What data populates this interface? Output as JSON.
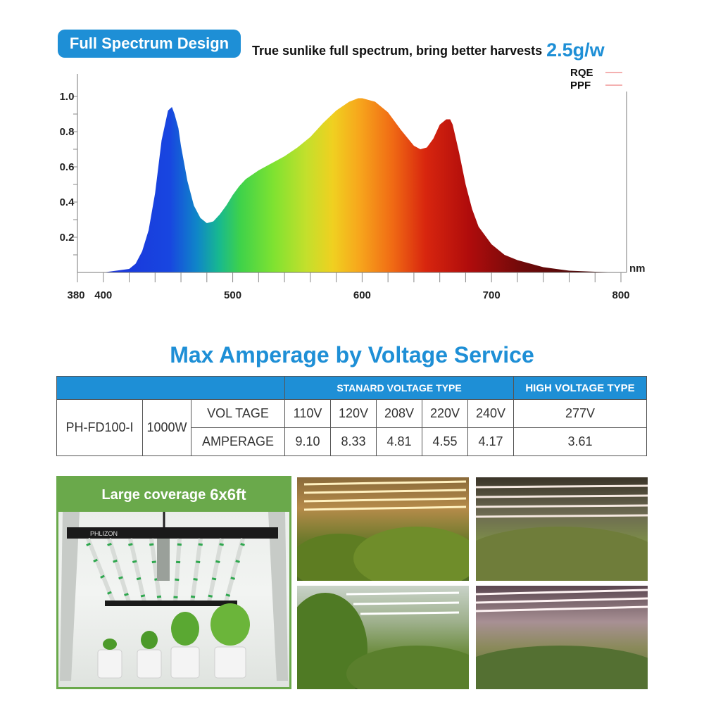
{
  "header": {
    "badge": "Full Spectrum Design",
    "tagline": "True sunlike full spectrum, bring better harvests",
    "highlight": "2.5g/w"
  },
  "chart_data": {
    "type": "area",
    "xlabel": "nm",
    "ylabel": "",
    "x_ticks": [
      "380",
      "400",
      "500",
      "600",
      "700",
      "800"
    ],
    "y_ticks": [
      "0.2",
      "0.4",
      "0.6",
      "0.8",
      "1.0"
    ],
    "xlim": [
      380,
      800
    ],
    "ylim": [
      0,
      1.08
    ],
    "legend": [
      {
        "name": "RQE",
        "color": "#e86060"
      },
      {
        "name": "PPF",
        "color": "#e86060"
      }
    ],
    "legend_position": "top-right",
    "x": [
      380,
      400,
      410,
      420,
      425,
      430,
      435,
      440,
      445,
      450,
      453,
      455,
      458,
      460,
      465,
      470,
      475,
      480,
      485,
      490,
      495,
      500,
      505,
      510,
      520,
      530,
      540,
      550,
      560,
      570,
      580,
      590,
      597,
      600,
      610,
      620,
      630,
      640,
      645,
      650,
      655,
      660,
      665,
      668,
      670,
      675,
      680,
      685,
      690,
      700,
      710,
      720,
      730,
      740,
      750,
      760,
      780,
      800
    ],
    "y": [
      0.0,
      0.0,
      0.01,
      0.02,
      0.05,
      0.12,
      0.24,
      0.45,
      0.75,
      0.92,
      0.94,
      0.9,
      0.82,
      0.72,
      0.52,
      0.38,
      0.31,
      0.28,
      0.29,
      0.33,
      0.38,
      0.44,
      0.49,
      0.53,
      0.58,
      0.62,
      0.66,
      0.71,
      0.77,
      0.85,
      0.92,
      0.97,
      0.99,
      0.99,
      0.97,
      0.91,
      0.81,
      0.72,
      0.7,
      0.71,
      0.76,
      0.84,
      0.87,
      0.87,
      0.84,
      0.68,
      0.5,
      0.36,
      0.26,
      0.16,
      0.1,
      0.07,
      0.05,
      0.03,
      0.02,
      0.01,
      0.004,
      0.0
    ]
  },
  "section_title": "Max Amperage by Voltage Service",
  "table": {
    "standard_header": "STANARD VOLTAGE TYPE",
    "high_header": "HIGH VOLTAGE TYPE",
    "model": "PH-FD100-I",
    "power": "1000W",
    "row1_label": "VOL TAGE",
    "row2_label": "AMPERAGE",
    "voltages": [
      "110V",
      "120V",
      "208V",
      "220V",
      "240V"
    ],
    "amperages": [
      "9.10",
      "8.33",
      "4.81",
      "4.55",
      "4.17"
    ],
    "high_voltage": "277V",
    "high_amperage": "3.61"
  },
  "coverage": {
    "label": "Large coverage",
    "size": "6x6ft",
    "brand": "PHLIZON"
  }
}
